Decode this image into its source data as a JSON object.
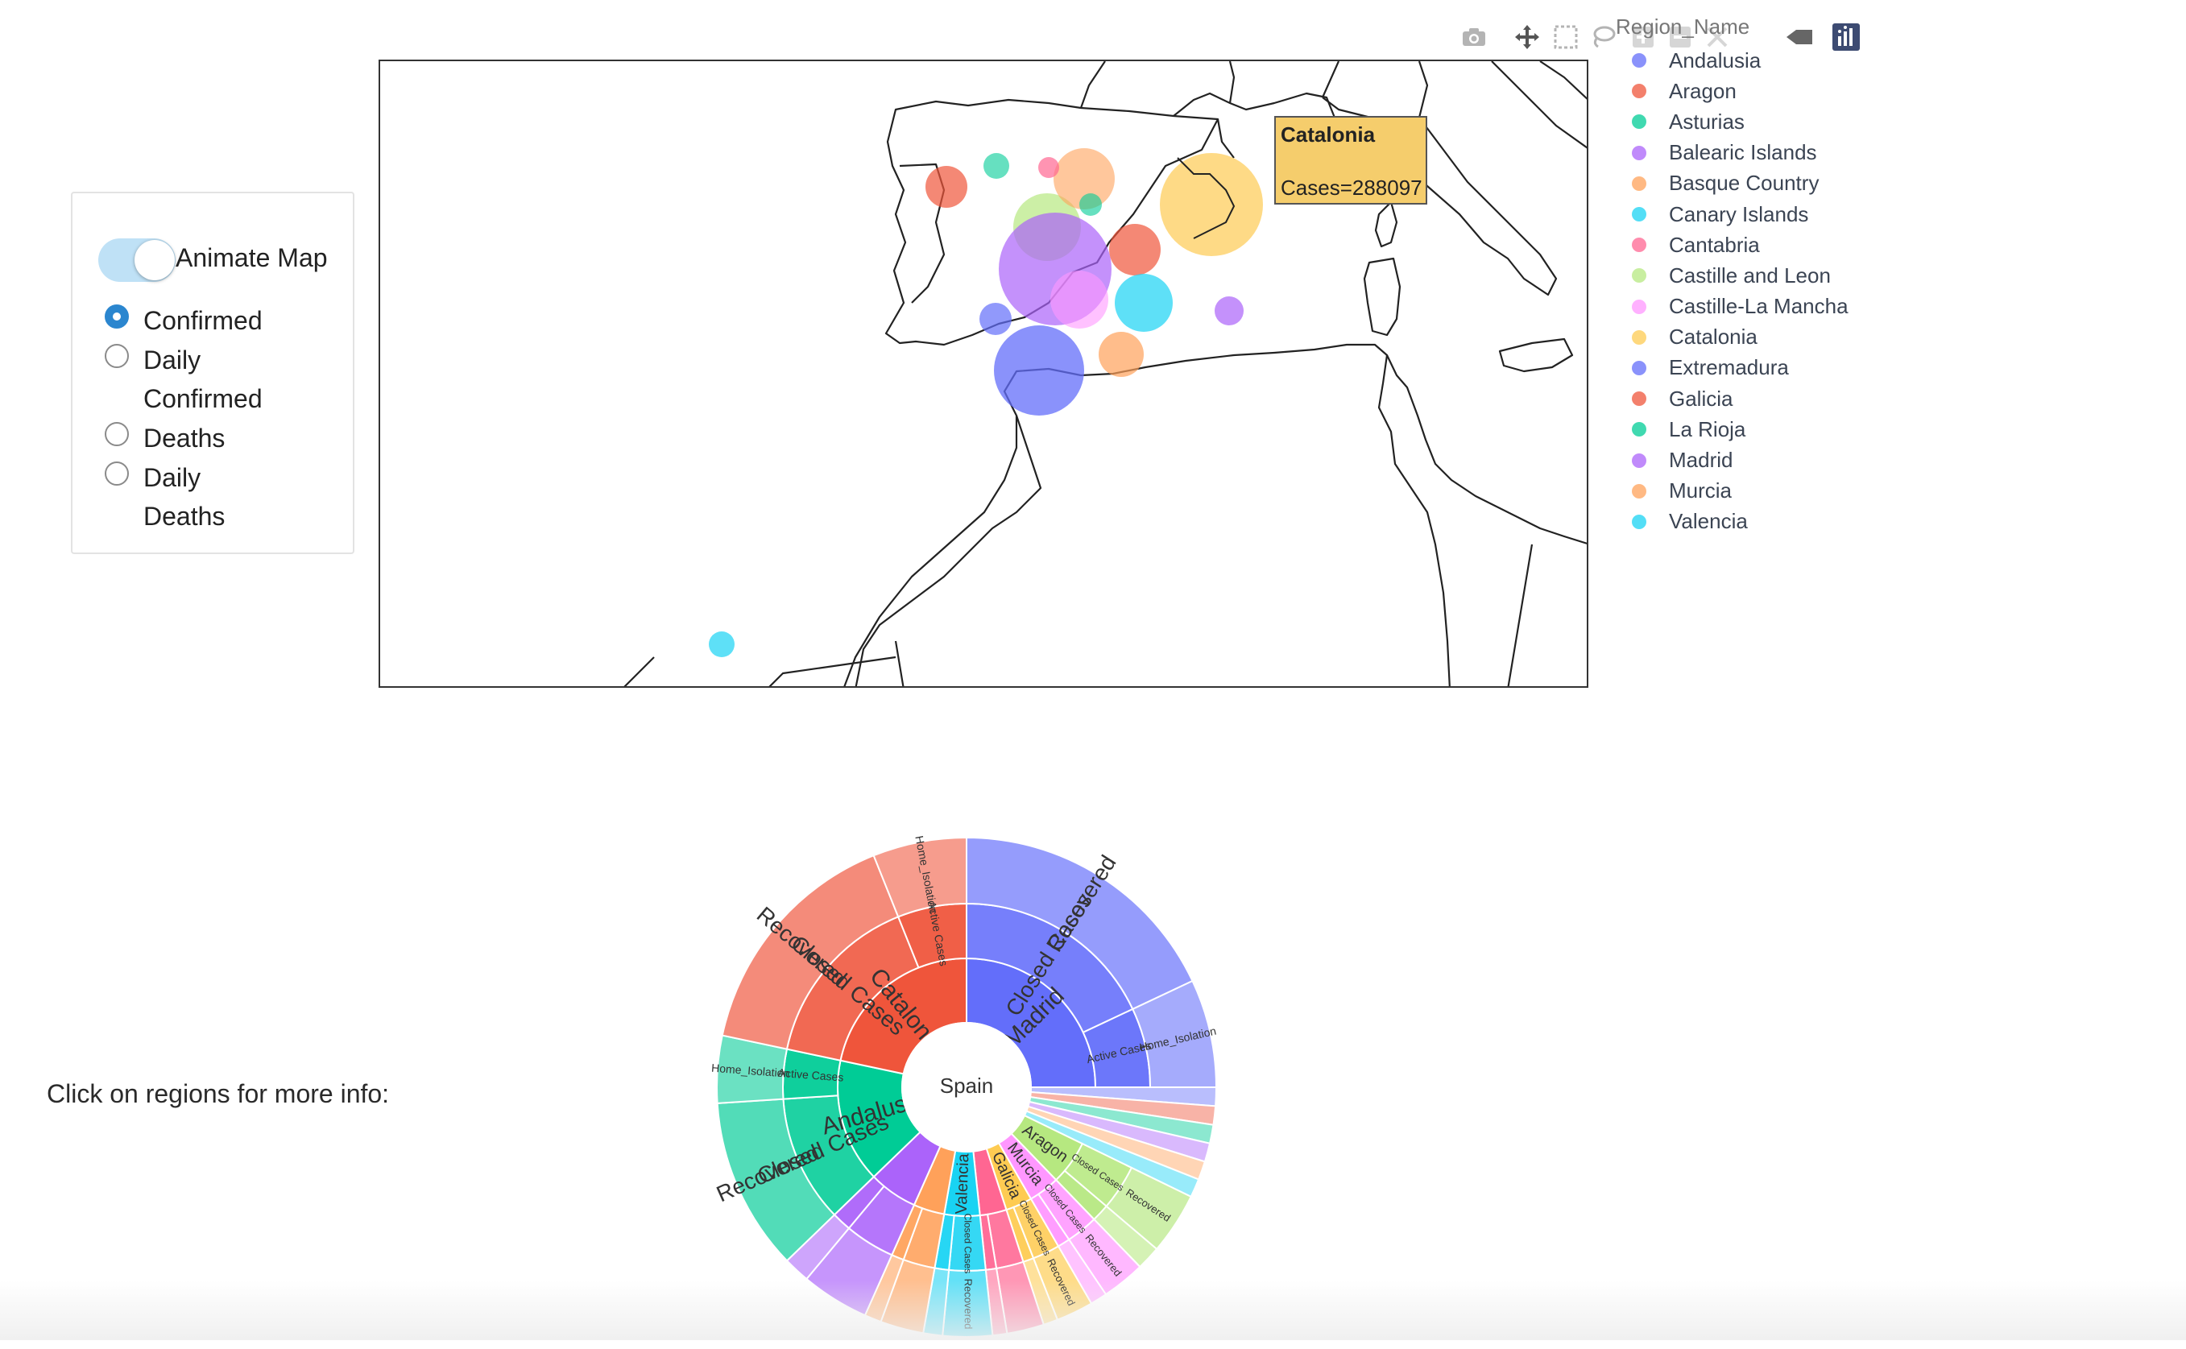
{
  "controls": {
    "animate_label": "Animate Map",
    "animate_on": true,
    "options": [
      {
        "label": "Confirmed",
        "checked": true
      },
      {
        "label": "Daily Confirmed",
        "checked": false
      },
      {
        "label": "Deaths",
        "checked": false
      },
      {
        "label": "Daily Deaths",
        "checked": false
      }
    ]
  },
  "map": {
    "legend_title": "Region_Name",
    "tooltip": {
      "region": "Catalonia",
      "text": "Cases=288097"
    },
    "modebar": [
      "camera-icon",
      "pan-icon",
      "box-select-icon",
      "lasso-icon",
      "zoom-in-icon",
      "zoom-out-icon",
      "autoscale-icon",
      "reset-icon",
      "spike-icon",
      "plotly-logo-icon"
    ],
    "regions": [
      {
        "name": "Andalusia",
        "color": "#636efa"
      },
      {
        "name": "Aragon",
        "color": "#ef553b"
      },
      {
        "name": "Asturias",
        "color": "#00cc96"
      },
      {
        "name": "Balearic Islands",
        "color": "#ab63fa"
      },
      {
        "name": "Basque Country",
        "color": "#ffa15a"
      },
      {
        "name": "Canary Islands",
        "color": "#19d3f3"
      },
      {
        "name": "Cantabria",
        "color": "#ff6692"
      },
      {
        "name": "Castille and Leon",
        "color": "#b6e880"
      },
      {
        "name": "Castille-La Mancha",
        "color": "#ff97ff"
      },
      {
        "name": "Catalonia",
        "color": "#fecb52"
      },
      {
        "name": "Extremadura",
        "color": "#636efa"
      },
      {
        "name": "Galicia",
        "color": "#ef553b"
      },
      {
        "name": "La Rioja",
        "color": "#00cc96"
      },
      {
        "name": "Madrid",
        "color": "#ab63fa"
      },
      {
        "name": "Murcia",
        "color": "#ffa15a"
      },
      {
        "name": "Valencia",
        "color": "#19d3f3"
      }
    ]
  },
  "click_info": "Click on regions for more info:",
  "sunburst": {
    "root": "Spain",
    "level1": [
      "Madrid",
      "Catalonia",
      "Andalusia",
      "Valencia",
      "Aragon",
      "Murcia",
      "Galicia"
    ],
    "level2": [
      "Closed Cases",
      "Active Cases"
    ],
    "level3": [
      "Recovered",
      "Home_Isolation"
    ]
  }
}
